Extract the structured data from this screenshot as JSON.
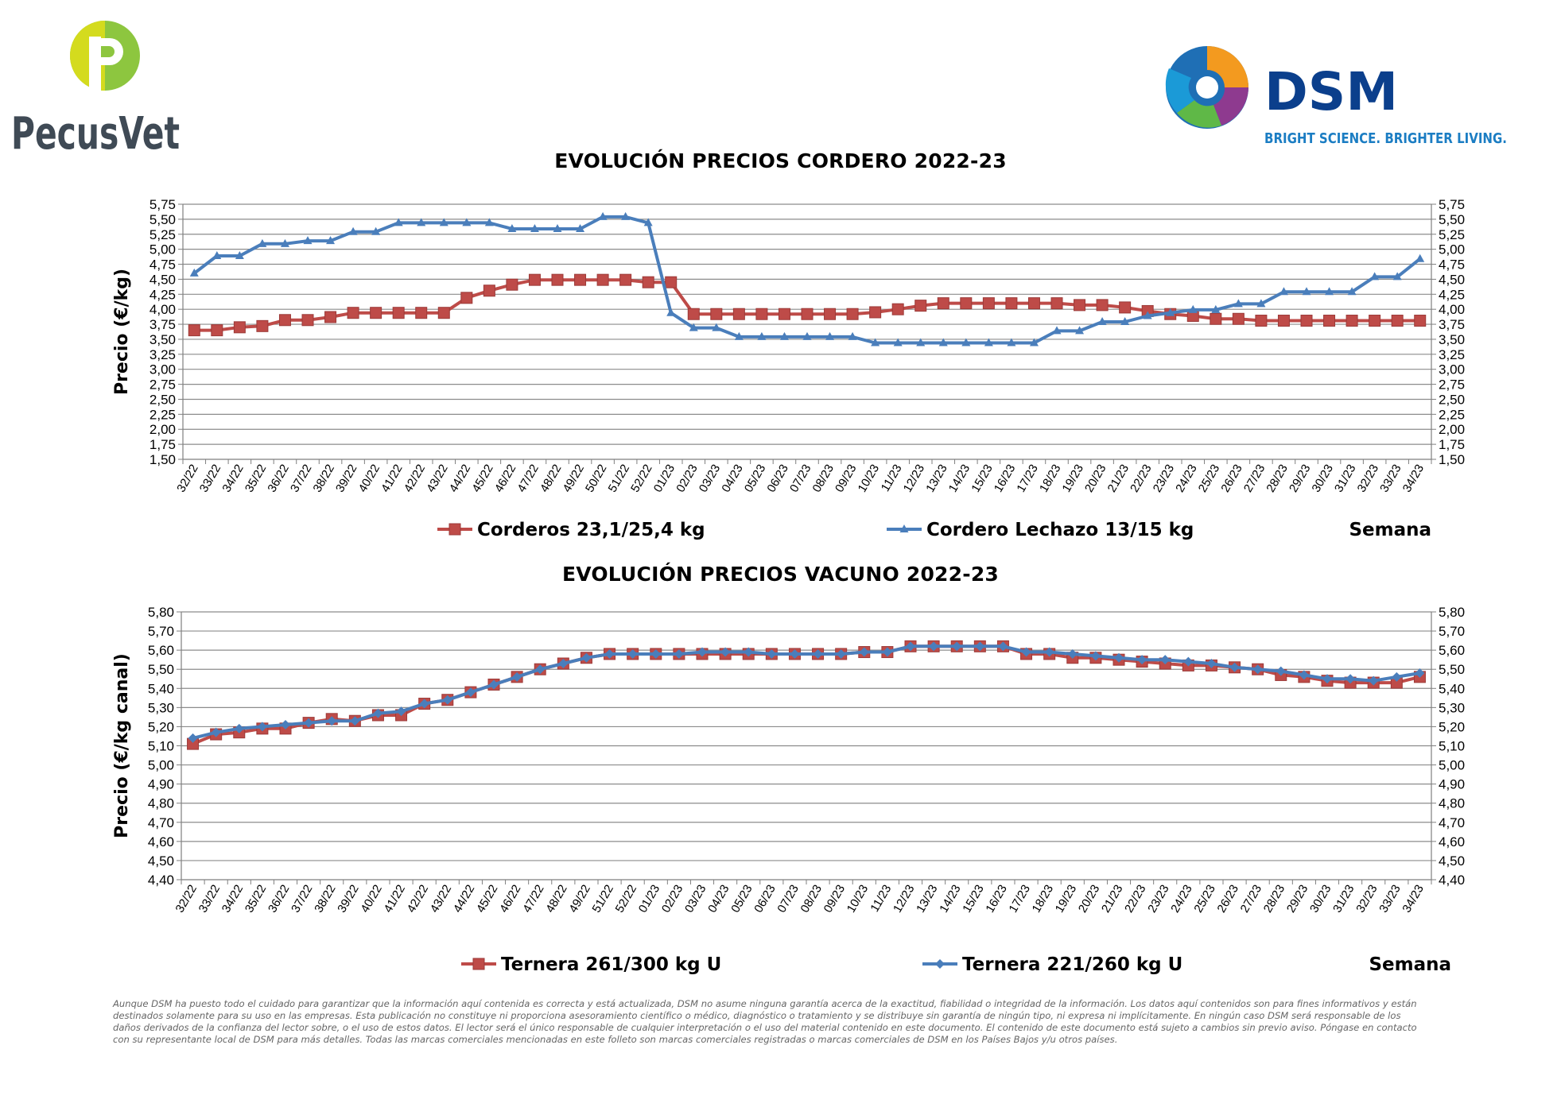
{
  "logos": {
    "pecusvet": {
      "text": "PecusVet",
      "colors": {
        "leaf_green": "#8DC63F",
        "leaf_yellow": "#D4DB1E",
        "text": "#3F4A55"
      }
    },
    "dsm": {
      "text": "DSM",
      "tagline": "BRIGHT SCIENCE. BRIGHTER LIVING.",
      "colors": {
        "text": "#0B3F8C",
        "tagline": "#1B7DC3"
      }
    }
  },
  "disclaimer": "Aunque DSM ha puesto todo el cuidado para garantizar que la información aquí contenida es correcta y está actualizada, DSM no asume ninguna garantía acerca de la exactitud, fiabilidad o integridad de la información. Los datos aquí contenidos son para fines informativos y están destinados solamente para su uso en las empresas. Esta publicación no constituye ni proporciona asesoramiento científico o médico, diagnóstico o tratamiento y se distribuye sin garantía de ningún tipo, ni expresa ni implícitamente. En ningún caso DSM será responsable de los daños derivados de la confianza del lector sobre, o el uso de estos datos. El lector será el único responsable de cualquier interpretación o el uso del material contenido en este documento. El contenido de este documento está sujeto a cambios sin previo aviso. Póngase en contacto con su representante local de DSM para más detalles. Todas las marcas comerciales mencionadas en este folleto son marcas comerciales registradas o marcas comerciales de DSM en los Países Bajos y/u otros países.",
  "chart_data": [
    {
      "type": "line",
      "title": "EVOLUCIÓN PRECIOS CORDERO 2022-23",
      "ylabel": "Precio (€/kg)",
      "xlabel": "Semana",
      "ylim": [
        1.5,
        5.75
      ],
      "ytick_step": 0.25,
      "ytick_decimals": 2,
      "secondary_y_axis": true,
      "grid": "horizontal",
      "legend_position": "bottom",
      "categories": [
        "32/22",
        "33/22",
        "34/22",
        "35/22",
        "36/22",
        "37/22",
        "38/22",
        "39/22",
        "40/22",
        "41/22",
        "42/22",
        "43/22",
        "44/22",
        "45/22",
        "46/22",
        "47/22",
        "48/22",
        "49/22",
        "50/22",
        "51/22",
        "52/22",
        "01/23",
        "02/23",
        "03/23",
        "04/23",
        "05/23",
        "06/23",
        "07/23",
        "08/23",
        "09/23",
        "10/23",
        "11/23",
        "12/23",
        "13/23",
        "14/23",
        "15/23",
        "16/23",
        "17/23",
        "18/23",
        "19/23",
        "20/23",
        "21/23",
        "22/23",
        "23/23",
        "24/23",
        "25/23",
        "26/23",
        "27/23",
        "28/23",
        "29/23",
        "30/23",
        "31/23",
        "32/23",
        "33/23",
        "34/23"
      ],
      "series": [
        {
          "name": "Corderos 23,1/25,4 kg",
          "color": "#BE4B48",
          "marker": "square",
          "values": [
            3.65,
            3.65,
            3.7,
            3.72,
            3.82,
            3.82,
            3.87,
            3.94,
            3.94,
            3.94,
            3.94,
            3.94,
            4.19,
            4.31,
            4.41,
            4.49,
            4.49,
            4.49,
            4.49,
            4.49,
            4.45,
            4.45,
            3.92,
            3.92,
            3.92,
            3.92,
            3.92,
            3.92,
            3.92,
            3.92,
            3.95,
            4.0,
            4.06,
            4.1,
            4.1,
            4.1,
            4.1,
            4.1,
            4.1,
            4.07,
            4.07,
            4.03,
            3.97,
            3.92,
            3.89,
            3.84,
            3.84,
            3.81,
            3.81,
            3.81,
            3.81,
            3.81,
            3.81,
            3.81,
            3.81
          ]
        },
        {
          "name": "Cordero Lechazo 13/15 kg",
          "color": "#4A7EBB",
          "marker": "triangle",
          "values": [
            4.6,
            4.89,
            4.89,
            5.09,
            5.09,
            5.14,
            5.14,
            5.29,
            5.29,
            5.44,
            5.44,
            5.44,
            5.44,
            5.44,
            5.34,
            5.34,
            5.34,
            5.34,
            5.54,
            5.54,
            5.44,
            3.94,
            3.69,
            3.69,
            3.54,
            3.54,
            3.54,
            3.54,
            3.54,
            3.54,
            3.44,
            3.44,
            3.44,
            3.44,
            3.44,
            3.44,
            3.44,
            3.44,
            3.64,
            3.64,
            3.79,
            3.79,
            3.89,
            3.94,
            3.99,
            3.99,
            4.09,
            4.09,
            4.29,
            4.29,
            4.29,
            4.29,
            4.54,
            4.54,
            4.84
          ]
        }
      ]
    },
    {
      "type": "line",
      "title": "EVOLUCIÓN PRECIOS VACUNO 2022-23",
      "ylabel": "Precio (€/kg canal)",
      "xlabel": "Semana",
      "ylim": [
        4.4,
        5.8
      ],
      "ytick_step": 0.1,
      "ytick_decimals": 2,
      "secondary_y_axis": true,
      "grid": "horizontal",
      "legend_position": "bottom",
      "categories": [
        "32/22",
        "33/22",
        "34/22",
        "35/22",
        "36/22",
        "37/22",
        "38/22",
        "39/22",
        "40/22",
        "41/22",
        "42/22",
        "43/22",
        "44/22",
        "45/22",
        "46/22",
        "47/22",
        "48/22",
        "49/22",
        "51/22",
        "52/22",
        "01/23",
        "02/23",
        "03/23",
        "04/23",
        "05/23",
        "06/23",
        "07/23",
        "08/23",
        "09/23",
        "10/23",
        "11/23",
        "12/23",
        "13/23",
        "14/23",
        "15/23",
        "16/23",
        "17/23",
        "18/23",
        "19/23",
        "20/23",
        "21/23",
        "22/23",
        "23/23",
        "24/23",
        "25/23",
        "26/23",
        "27/23",
        "28/23",
        "29/23",
        "30/23",
        "31/23",
        "32/23",
        "33/23",
        "34/23"
      ],
      "series": [
        {
          "name": "Ternera 261/300 kg U",
          "color": "#BE4B48",
          "marker": "square",
          "values": [
            5.11,
            5.16,
            5.17,
            5.19,
            5.19,
            5.22,
            5.24,
            5.23,
            5.26,
            5.26,
            5.32,
            5.34,
            5.38,
            5.42,
            5.46,
            5.5,
            5.53,
            5.56,
            5.58,
            5.58,
            5.58,
            5.58,
            5.58,
            5.58,
            5.58,
            5.58,
            5.58,
            5.58,
            5.58,
            5.59,
            5.59,
            5.62,
            5.62,
            5.62,
            5.62,
            5.62,
            5.58,
            5.58,
            5.56,
            5.56,
            5.55,
            5.54,
            5.53,
            5.52,
            5.52,
            5.51,
            5.5,
            5.47,
            5.46,
            5.44,
            5.43,
            5.43,
            5.43,
            5.46
          ]
        },
        {
          "name": "Ternera 221/260 kg U",
          "color": "#4A7EBB",
          "marker": "diamond",
          "values": [
            5.14,
            5.17,
            5.19,
            5.2,
            5.21,
            5.22,
            5.23,
            5.23,
            5.27,
            5.28,
            5.32,
            5.34,
            5.38,
            5.42,
            5.46,
            5.5,
            5.53,
            5.56,
            5.58,
            5.58,
            5.58,
            5.58,
            5.59,
            5.59,
            5.59,
            5.58,
            5.58,
            5.58,
            5.58,
            5.59,
            5.59,
            5.62,
            5.62,
            5.62,
            5.62,
            5.62,
            5.59,
            5.59,
            5.58,
            5.57,
            5.56,
            5.55,
            5.55,
            5.54,
            5.53,
            5.51,
            5.5,
            5.49,
            5.47,
            5.45,
            5.45,
            5.44,
            5.46,
            5.48
          ]
        }
      ]
    }
  ]
}
